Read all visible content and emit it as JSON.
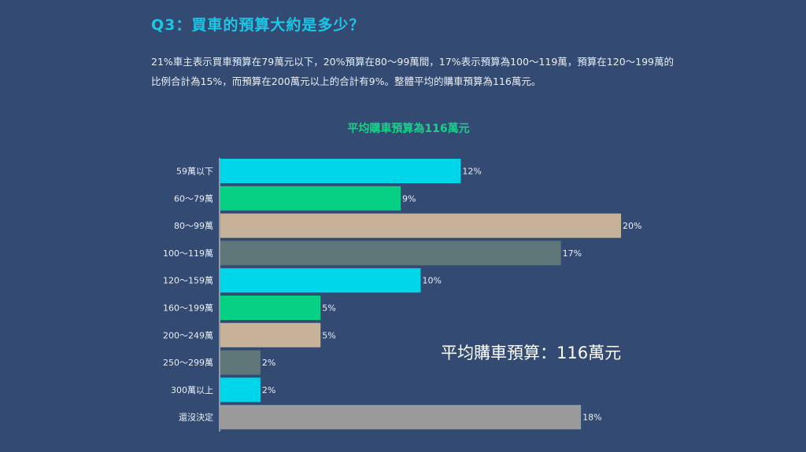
{
  "header": {
    "question": "Q3：買車的預算大約是多少？",
    "intro": "21%車主表示買車預算在79萬元以下，20%預算在80～99萬間，17%表示預算為100～119萬，預算在120～199萬的比例合計為15%，而預算在200萬元以上的合計有9%。整體平均的購車預算為116萬元。"
  },
  "callout": "平均購車預算：116萬元",
  "colors": {
    "background": "#334b73",
    "title": "#19c7e6",
    "chart_title": "#19d08a",
    "cyan": "#00d6ea",
    "green": "#06d084",
    "beige": "#c5b299",
    "slate": "#60777a",
    "gray": "#9a9a9a"
  },
  "chart_data": {
    "type": "bar",
    "orientation": "horizontal",
    "title": "平均購車預算為116萬元",
    "categories": [
      "59萬以下",
      "60～79萬",
      "80～99萬",
      "100～119萬",
      "120～159萬",
      "160～199萬",
      "200～249萬",
      "250～299萬",
      "300萬以上",
      "還沒決定"
    ],
    "values": [
      12,
      9,
      20,
      17,
      10,
      5,
      5,
      2,
      2,
      18
    ],
    "value_labels": [
      "12%",
      "9%",
      "20%",
      "17%",
      "10%",
      "5%",
      "5%",
      "2%",
      "2%",
      "18%"
    ],
    "bar_colors": [
      "#00d6ea",
      "#06d084",
      "#c5b299",
      "#60777a",
      "#00d6ea",
      "#06d084",
      "#c5b299",
      "#60777a",
      "#00d6ea",
      "#9a9a9a"
    ],
    "unit": "%",
    "xlim": [
      0,
      20
    ],
    "grid": false
  }
}
